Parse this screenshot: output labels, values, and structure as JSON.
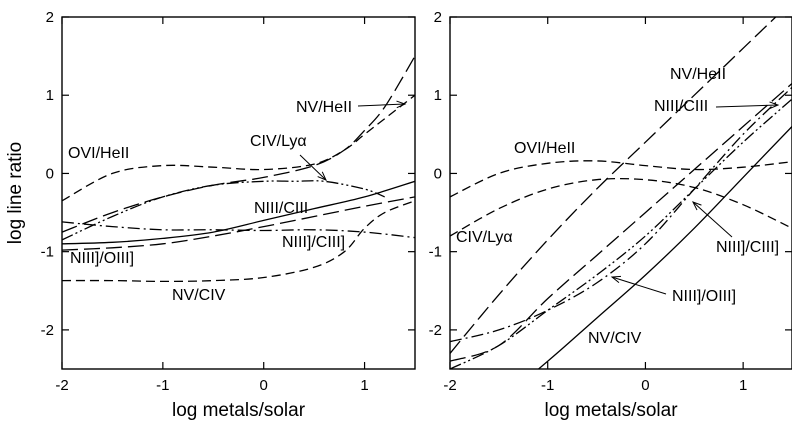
{
  "chart_data": [
    {
      "type": "line",
      "xlabel": "log metals/solar",
      "ylabel": "log line ratio",
      "xlim": [
        -2,
        1.5
      ],
      "ylim": [
        -2.5,
        2
      ],
      "xticks": [
        "-2",
        "-1",
        "0",
        "1"
      ],
      "yticks": [
        "-2",
        "-1",
        "0",
        "1",
        "2"
      ],
      "grid": false,
      "series": [
        {
          "name": "NV/HeII",
          "dash": "long-dash",
          "x": [
            -2,
            -1.5,
            -1,
            -0.5,
            0,
            0.5,
            0.8,
            1.0,
            1.2,
            1.5
          ],
          "y": [
            -0.75,
            -0.5,
            -0.3,
            -0.15,
            -0.05,
            0.1,
            0.3,
            0.55,
            0.85,
            1.5
          ]
        },
        {
          "name": "OVI/HeII",
          "dash": "dash",
          "x": [
            -2,
            -1.5,
            -1,
            -0.5,
            0,
            0.5,
            0.8,
            1.0,
            1.2,
            1.5
          ],
          "y": [
            -0.35,
            0.0,
            0.1,
            0.08,
            0.05,
            0.12,
            0.3,
            0.5,
            0.7,
            1.0
          ]
        },
        {
          "name": "CIV/Lyα",
          "dash": "dash-dot-dot",
          "x": [
            -2,
            -1.5,
            -1,
            -0.5,
            0,
            0.3,
            0.6,
            1.0,
            1.2
          ],
          "y": [
            -0.85,
            -0.55,
            -0.3,
            -0.15,
            -0.1,
            -0.1,
            -0.1,
            -0.2,
            -0.3
          ]
        },
        {
          "name": "NIII/CIII",
          "dash": "solid",
          "x": [
            -2,
            -1.5,
            -1,
            -0.5,
            0,
            0.5,
            1.0,
            1.5
          ],
          "y": [
            -0.9,
            -0.88,
            -0.83,
            -0.75,
            -0.6,
            -0.45,
            -0.3,
            -0.1
          ]
        },
        {
          "name": "NIII]/CIII]",
          "dash": "dash-dot",
          "x": [
            -2,
            -1.5,
            -1,
            -0.5,
            0,
            0.5,
            1.0,
            1.5
          ],
          "y": [
            -0.62,
            -0.68,
            -0.72,
            -0.72,
            -0.73,
            -0.72,
            -0.75,
            -0.82
          ]
        },
        {
          "name": "NIII]/OIII]",
          "dash": "long-dash",
          "x": [
            -2,
            -1.5,
            -1,
            -0.5,
            0,
            0.5,
            1.0,
            1.5
          ],
          "y": [
            -0.98,
            -0.95,
            -0.9,
            -0.8,
            -0.68,
            -0.55,
            -0.42,
            -0.3
          ]
        },
        {
          "name": "NV/CIV",
          "dash": "dash",
          "x": [
            -2,
            -1.5,
            -1,
            -0.5,
            0,
            0.5,
            0.8,
            1.0,
            1.2,
            1.5
          ],
          "y": [
            -1.37,
            -1.37,
            -1.38,
            -1.37,
            -1.33,
            -1.2,
            -1.0,
            -0.7,
            -0.5,
            -0.35
          ]
        }
      ]
    },
    {
      "type": "line",
      "xlabel": "log metals/solar",
      "ylabel": "",
      "xlim": [
        -2,
        1.5
      ],
      "ylim": [
        -2.5,
        2
      ],
      "xticks": [
        "-2",
        "-1",
        "0",
        "1"
      ],
      "yticks": [
        "-2",
        "-1",
        "0",
        "1",
        "2"
      ],
      "grid": false,
      "series": [
        {
          "name": "NV/HeII",
          "dash": "long-dash",
          "x": [
            -2,
            -1.5,
            -1,
            -0.5,
            0,
            0.5,
            1.0,
            1.5
          ],
          "y": [
            -2.3,
            -1.55,
            -0.85,
            -0.2,
            0.4,
            1.0,
            1.6,
            2.2
          ]
        },
        {
          "name": "OVI/HeII",
          "dash": "dash",
          "x": [
            -2,
            -1.5,
            -1,
            -0.5,
            0,
            0.5,
            1.0,
            1.5
          ],
          "y": [
            -0.3,
            0.0,
            0.13,
            0.16,
            0.1,
            0.05,
            0.08,
            0.15
          ]
        },
        {
          "name": "CIV/Lyα",
          "dash": "dash",
          "x": [
            -2,
            -1.5,
            -1,
            -0.5,
            0,
            0.5,
            1.0,
            1.5
          ],
          "y": [
            -0.8,
            -0.45,
            -0.2,
            -0.08,
            -0.08,
            -0.18,
            -0.4,
            -0.7
          ]
        },
        {
          "name": "NIII/CIII",
          "dash": "long-dash",
          "x": [
            -2,
            -1.5,
            -1,
            -0.5,
            0,
            0.5,
            1.0,
            1.5
          ],
          "y": [
            -2.4,
            -2.2,
            -1.6,
            -1.05,
            -0.5,
            0.05,
            0.6,
            1.15
          ]
        },
        {
          "name": "NIII]/CIII]",
          "dash": "dash-dot",
          "x": [
            -2,
            -1.5,
            -1,
            -0.5,
            0,
            0.5,
            1.0,
            1.5
          ],
          "y": [
            -2.15,
            -2.0,
            -1.75,
            -1.4,
            -0.9,
            -0.2,
            0.5,
            1.1
          ]
        },
        {
          "name": "NIII]/OIII]",
          "dash": "dash-dot-dot",
          "x": [
            -2,
            -1.5,
            -1,
            -0.5,
            0,
            0.5,
            1.0,
            1.5
          ],
          "y": [
            -2.5,
            -2.2,
            -1.75,
            -1.3,
            -0.8,
            -0.2,
            0.4,
            0.95
          ]
        },
        {
          "name": "NV/CIV",
          "dash": "solid",
          "x": [
            -2,
            -1.5,
            -1,
            -0.5,
            0,
            0.5,
            1.0,
            1.5
          ],
          "y": [
            -3.2,
            -2.9,
            -2.4,
            -1.85,
            -1.3,
            -0.7,
            -0.05,
            0.6
          ]
        }
      ]
    }
  ]
}
